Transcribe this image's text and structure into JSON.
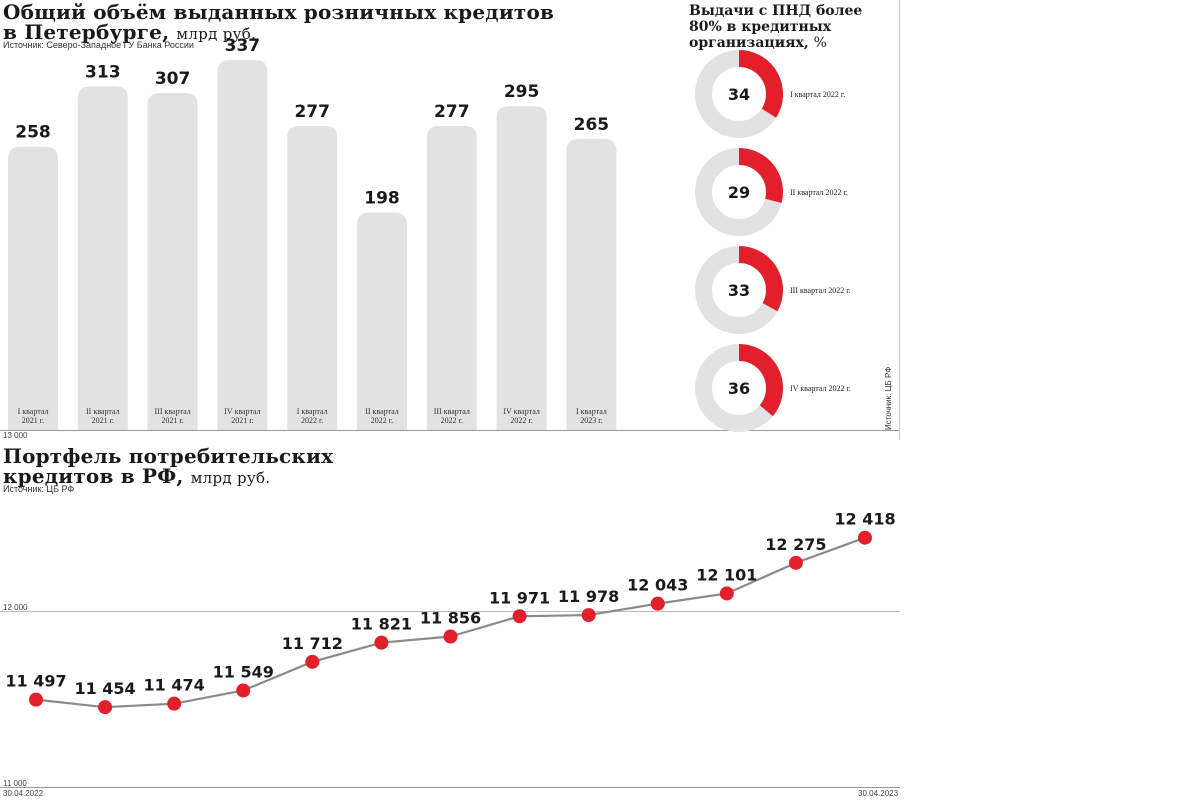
{
  "bar_section": {
    "title": "Общий объём выданных розничных кредитов в Петербурге,",
    "title_line1": "Общий объём выданных розничных кредитов",
    "title_line2": "в Петербурге,",
    "unit": "млрд руб.",
    "source": "Источник: Северо-Западное ГУ Банка России",
    "baseline_label": "13 000"
  },
  "donut_section": {
    "title_line1": "Выдачи с ПНД более",
    "title_line2": "80% в кредитных",
    "title_line3": "организациях,",
    "unit": "%",
    "source": "Источник: ЦБ РФ"
  },
  "line_section": {
    "title_line1": "Портфель потребительских",
    "title_line2": "кредитов в РФ,",
    "unit": "млрд руб.",
    "source": "Источник: ЦБ РФ",
    "y_label_top": "12 000",
    "y_label_bottom": "11 000",
    "x_label_start": "30.04.2022",
    "x_label_end": "30.04.2023"
  },
  "colors": {
    "bar": "#e2e2e2",
    "accent": "#e41f2c",
    "donut_bg": "#e2e2e2",
    "line": "#8a8a8a"
  },
  "chart_data": [
    {
      "type": "bar",
      "title": "Общий объём выданных розничных кредитов в Петербурге, млрд руб.",
      "categories": [
        [
          "I квартал",
          "2021 г."
        ],
        [
          "II квартал",
          "2021 г."
        ],
        [
          "III квартал",
          "2021 г."
        ],
        [
          "IV квартал",
          "2021 г."
        ],
        [
          "I квартал",
          "2022 г."
        ],
        [
          "II квартал",
          "2022 г."
        ],
        [
          "III квартал",
          "2022 г."
        ],
        [
          "IV квартал",
          "2022 г."
        ],
        [
          "I квартал",
          "2023 г."
        ]
      ],
      "values": [
        258,
        313,
        307,
        337,
        277,
        198,
        277,
        295,
        265
      ],
      "value_labels": [
        "258",
        "313",
        "307",
        "337",
        "277",
        "198",
        "277",
        "295",
        "265"
      ],
      "ylim": [
        0,
        337
      ]
    },
    {
      "type": "pie",
      "title": "Выдачи с ПНД более 80% в кредитных организациях, %",
      "items": [
        {
          "label": "I квартал 2022 г.",
          "value": 34
        },
        {
          "label": "II квартал 2022 г.",
          "value": 29
        },
        {
          "label": "III квартал 2022 г.",
          "value": 33
        },
        {
          "label": "IV квартал 2022 г.",
          "value": 36
        }
      ]
    },
    {
      "type": "line",
      "title": "Портфель потребительских кредитов в РФ, млрд руб.",
      "values": [
        11497,
        11454,
        11474,
        11549,
        11712,
        11821,
        11856,
        11971,
        11978,
        12043,
        12101,
        12275,
        12418
      ],
      "value_labels": [
        "11 497",
        "11 454",
        "11 474",
        "11 549",
        "11 712",
        "11 821",
        "11 856",
        "11 971",
        "11 978",
        "12 043",
        "12 101",
        "12 275",
        "12 418"
      ],
      "x_range_labels": [
        "30.04.2022",
        "30.04.2023"
      ],
      "ylim": [
        11000,
        12500
      ],
      "y_ticks": [
        "12 000",
        "11 000"
      ]
    }
  ]
}
